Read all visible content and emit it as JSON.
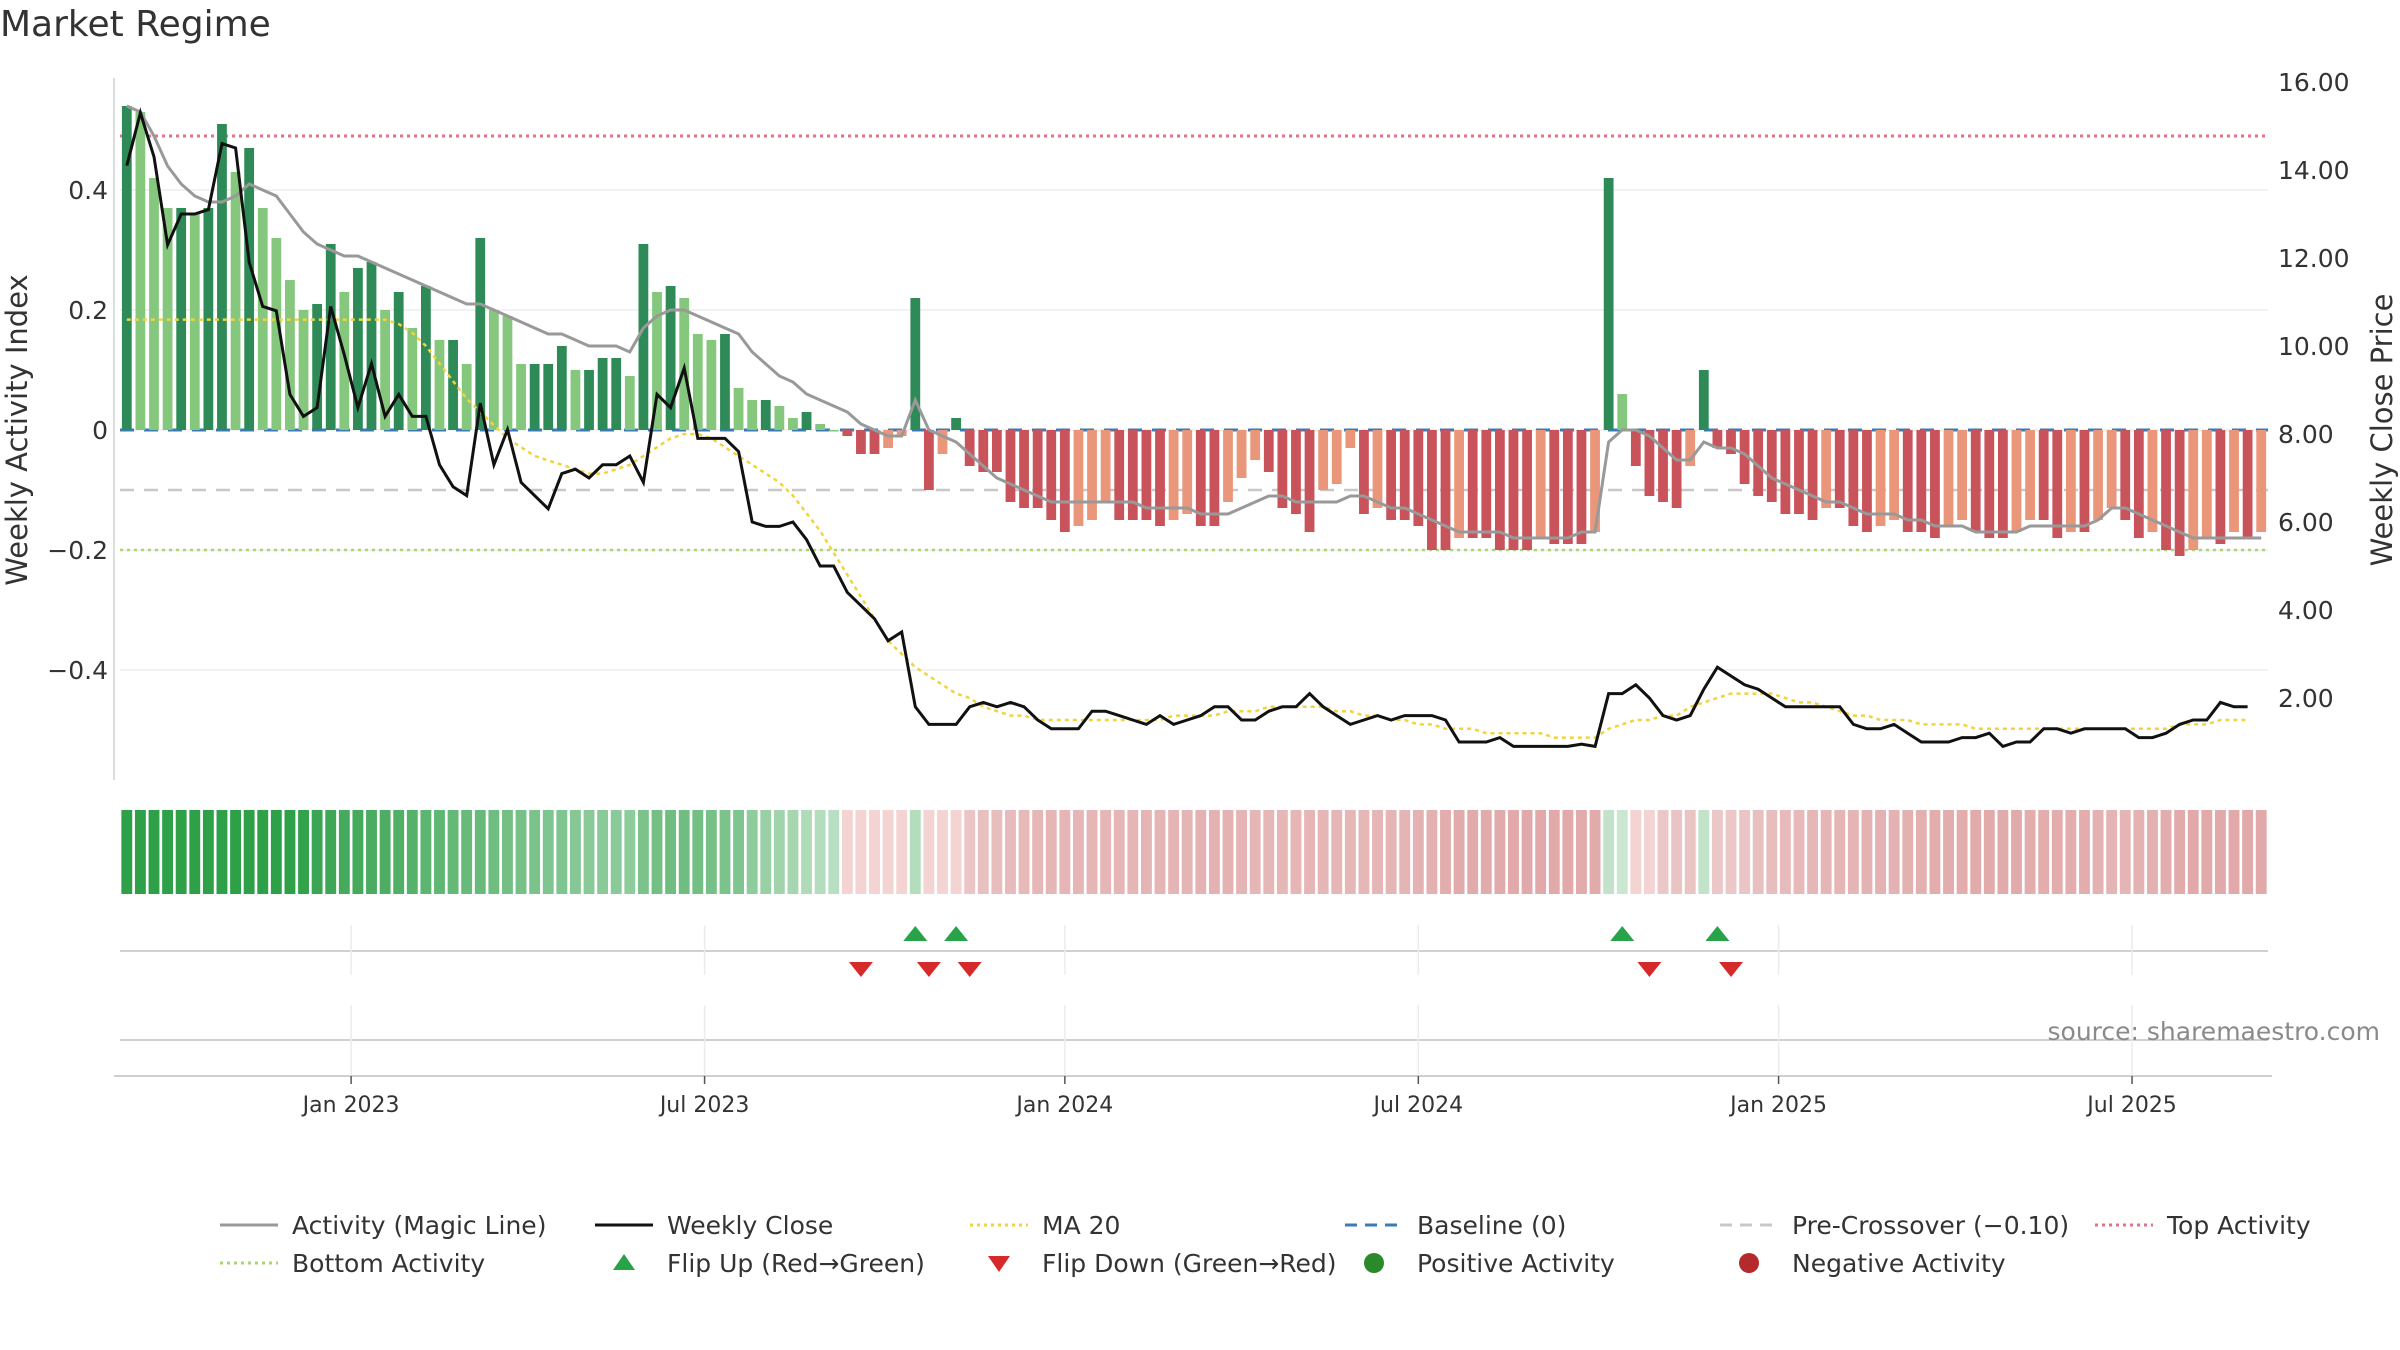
{
  "title": "Market Regime",
  "source": "source: sharemaestro.com",
  "chart_data": {
    "type": "bar",
    "left_axis": {
      "label": "Weekly Activity Index",
      "ticks": [
        0.4,
        0.2,
        0,
        -0.2,
        -0.4
      ],
      "tick_labels": [
        "0.4",
        "0.2",
        "0",
        "−0.2",
        "−0.4"
      ],
      "ylim": [
        -0.585,
        0.585
      ]
    },
    "right_axis": {
      "label": "Weekly Close Price",
      "ticks": [
        2,
        4,
        6,
        8,
        10,
        12,
        14,
        16
      ],
      "tick_labels": [
        "2.00",
        "4.00",
        "6.00",
        "8.00",
        "10.00",
        "12.00",
        "14.00",
        "16.00"
      ],
      "ylim": [
        -0.2,
        16.0
      ]
    },
    "x_tick_labels": [
      "Jan 2023",
      "Jul 2023",
      "Jan 2024",
      "Jul 2024",
      "Jan 2025",
      "Jul 2025"
    ],
    "x_tick_weeks": [
      17,
      43,
      69.5,
      95.5,
      122,
      148
    ],
    "grid": true,
    "legend_position": "bottom",
    "reference_lines": {
      "top_activity": 0.49,
      "bottom_activity": -0.2,
      "pre_crossover": -0.1,
      "baseline": 0
    },
    "activity_bars": [
      0.54,
      0.53,
      0.42,
      0.37,
      0.37,
      0.36,
      0.37,
      0.51,
      0.43,
      0.47,
      0.37,
      0.32,
      0.25,
      0.2,
      0.21,
      0.31,
      0.23,
      0.27,
      0.28,
      0.2,
      0.23,
      0.17,
      0.24,
      0.15,
      0.15,
      0.11,
      0.32,
      0.2,
      0.19,
      0.11,
      0.11,
      0.11,
      0.14,
      0.1,
      0.1,
      0.12,
      0.12,
      0.09,
      0.31,
      0.23,
      0.24,
      0.22,
      0.16,
      0.15,
      0.16,
      0.07,
      0.05,
      0.05,
      0.04,
      0.02,
      0.03,
      0.01,
      0.0,
      -0.01,
      -0.04,
      -0.04,
      -0.03,
      -0.01,
      0.22,
      -0.1,
      -0.04,
      0.02,
      -0.06,
      -0.07,
      -0.07,
      -0.12,
      -0.13,
      -0.13,
      -0.15,
      -0.17,
      -0.16,
      -0.15,
      -0.12,
      -0.15,
      -0.15,
      -0.15,
      -0.16,
      -0.15,
      -0.14,
      -0.16,
      -0.16,
      -0.12,
      -0.08,
      -0.05,
      -0.07,
      -0.13,
      -0.14,
      -0.17,
      -0.1,
      -0.09,
      -0.03,
      -0.14,
      -0.13,
      -0.15,
      -0.15,
      -0.16,
      -0.2,
      -0.2,
      -0.18,
      -0.18,
      -0.18,
      -0.2,
      -0.2,
      -0.2,
      -0.18,
      -0.19,
      -0.19,
      -0.19,
      -0.17,
      0.42,
      0.06,
      -0.06,
      -0.11,
      -0.12,
      -0.13,
      -0.06,
      0.1,
      -0.03,
      -0.04,
      -0.09,
      -0.11,
      -0.12,
      -0.14,
      -0.14,
      -0.15,
      -0.13,
      -0.13,
      -0.16,
      -0.17,
      -0.16,
      -0.15,
      -0.17,
      -0.17,
      -0.18,
      -0.16,
      -0.15,
      -0.17,
      -0.18,
      -0.18,
      -0.17,
      -0.15,
      -0.15,
      -0.18,
      -0.17,
      -0.17,
      -0.15,
      -0.13,
      -0.15,
      -0.18,
      -0.17,
      -0.2,
      -0.21,
      -0.2,
      -0.18,
      -0.19,
      -0.17,
      -0.18,
      -0.17
    ],
    "magic_line": [
      0.54,
      0.53,
      0.49,
      0.44,
      0.41,
      0.39,
      0.38,
      0.38,
      0.39,
      0.41,
      0.4,
      0.39,
      0.36,
      0.33,
      0.31,
      0.3,
      0.29,
      0.29,
      0.28,
      0.27,
      0.26,
      0.25,
      0.24,
      0.23,
      0.22,
      0.21,
      0.21,
      0.2,
      0.19,
      0.18,
      0.17,
      0.16,
      0.16,
      0.15,
      0.14,
      0.14,
      0.14,
      0.13,
      0.17,
      0.19,
      0.2,
      0.2,
      0.19,
      0.18,
      0.17,
      0.16,
      0.13,
      0.11,
      0.09,
      0.08,
      0.06,
      0.05,
      0.04,
      0.03,
      0.01,
      0.0,
      -0.01,
      -0.01,
      0.05,
      0.0,
      -0.01,
      -0.02,
      -0.04,
      -0.06,
      -0.08,
      -0.09,
      -0.1,
      -0.11,
      -0.12,
      -0.12,
      -0.12,
      -0.12,
      -0.12,
      -0.12,
      -0.12,
      -0.13,
      -0.13,
      -0.13,
      -0.13,
      -0.14,
      -0.14,
      -0.14,
      -0.13,
      -0.12,
      -0.11,
      -0.11,
      -0.12,
      -0.12,
      -0.12,
      -0.12,
      -0.11,
      -0.11,
      -0.12,
      -0.13,
      -0.13,
      -0.14,
      -0.15,
      -0.16,
      -0.17,
      -0.17,
      -0.17,
      -0.17,
      -0.18,
      -0.18,
      -0.18,
      -0.18,
      -0.18,
      -0.17,
      -0.17,
      -0.02,
      0.0,
      0.0,
      -0.01,
      -0.03,
      -0.05,
      -0.05,
      -0.02,
      -0.03,
      -0.03,
      -0.04,
      -0.06,
      -0.08,
      -0.09,
      -0.1,
      -0.11,
      -0.12,
      -0.12,
      -0.13,
      -0.14,
      -0.14,
      -0.14,
      -0.15,
      -0.15,
      -0.16,
      -0.16,
      -0.16,
      -0.17,
      -0.17,
      -0.17,
      -0.17,
      -0.16,
      -0.16,
      -0.16,
      -0.16,
      -0.16,
      -0.15,
      -0.13,
      -0.13,
      -0.14,
      -0.15,
      -0.16,
      -0.17,
      -0.18,
      -0.18,
      -0.18,
      -0.18,
      -0.18,
      -0.18
    ],
    "weekly_close": [
      14.1,
      15.3,
      14.3,
      12.3,
      13.0,
      13.0,
      13.1,
      14.6,
      14.5,
      11.9,
      10.9,
      10.8,
      8.9,
      8.4,
      8.6,
      10.9,
      9.8,
      8.6,
      9.6,
      8.4,
      8.9,
      8.4,
      8.4,
      7.3,
      6.8,
      6.6,
      8.7,
      7.3,
      8.1,
      6.9,
      6.6,
      6.3,
      7.1,
      7.2,
      7.0,
      7.3,
      7.3,
      7.5,
      6.9,
      8.9,
      8.6,
      9.5,
      7.9,
      7.9,
      7.9,
      7.6,
      6.0,
      5.9,
      5.9,
      6.0,
      5.6,
      5.0,
      5.0,
      4.4,
      4.1,
      3.8,
      3.3,
      3.5,
      1.8,
      1.4,
      1.4,
      1.4,
      1.8,
      1.9,
      1.8,
      1.9,
      1.8,
      1.5,
      1.3,
      1.3,
      1.3,
      1.7,
      1.7,
      1.6,
      1.5,
      1.4,
      1.6,
      1.4,
      1.5,
      1.6,
      1.8,
      1.8,
      1.5,
      1.5,
      1.7,
      1.8,
      1.8,
      2.1,
      1.8,
      1.6,
      1.4,
      1.5,
      1.6,
      1.5,
      1.6,
      1.6,
      1.6,
      1.5,
      1.0,
      1.0,
      1.0,
      1.1,
      0.9,
      0.9,
      0.9,
      0.9,
      0.9,
      0.95,
      0.9,
      2.1,
      2.1,
      2.3,
      2.0,
      1.6,
      1.5,
      1.6,
      2.2,
      2.7,
      2.5,
      2.3,
      2.2,
      2.0,
      1.8,
      1.8,
      1.8,
      1.8,
      1.8,
      1.4,
      1.3,
      1.3,
      1.4,
      1.2,
      1.0,
      1.0,
      1.0,
      1.1,
      1.1,
      1.2,
      0.9,
      1.0,
      1.0,
      1.3,
      1.3,
      1.2,
      1.3,
      1.3,
      1.3,
      1.3,
      1.1,
      1.1,
      1.2,
      1.4,
      1.5,
      1.5,
      1.9,
      1.8,
      1.8
    ],
    "ma20": [
      10.6,
      10.6,
      10.6,
      10.6,
      10.6,
      10.6,
      10.6,
      10.6,
      10.6,
      10.6,
      10.6,
      10.6,
      10.6,
      10.6,
      10.6,
      10.6,
      10.6,
      10.6,
      10.6,
      10.6,
      10.5,
      10.3,
      10.0,
      9.6,
      9.2,
      8.8,
      8.5,
      8.2,
      7.9,
      7.7,
      7.5,
      7.4,
      7.3,
      7.2,
      7.1,
      7.1,
      7.2,
      7.3,
      7.5,
      7.7,
      7.9,
      8.0,
      8.0,
      7.9,
      7.7,
      7.5,
      7.3,
      7.1,
      6.9,
      6.6,
      6.2,
      5.8,
      5.3,
      4.8,
      4.3,
      3.8,
      3.3,
      3.0,
      2.7,
      2.5,
      2.3,
      2.1,
      2.0,
      1.8,
      1.7,
      1.6,
      1.6,
      1.5,
      1.5,
      1.5,
      1.5,
      1.5,
      1.5,
      1.5,
      1.5,
      1.5,
      1.5,
      1.6,
      1.6,
      1.6,
      1.6,
      1.7,
      1.7,
      1.7,
      1.8,
      1.8,
      1.8,
      1.8,
      1.8,
      1.7,
      1.7,
      1.6,
      1.6,
      1.5,
      1.5,
      1.4,
      1.4,
      1.3,
      1.3,
      1.3,
      1.2,
      1.2,
      1.2,
      1.2,
      1.2,
      1.1,
      1.1,
      1.1,
      1.1,
      1.3,
      1.4,
      1.5,
      1.5,
      1.6,
      1.6,
      1.8,
      1.9,
      2.0,
      2.1,
      2.1,
      2.1,
      2.1,
      2.0,
      1.9,
      1.9,
      1.8,
      1.7,
      1.6,
      1.6,
      1.5,
      1.5,
      1.5,
      1.4,
      1.4,
      1.4,
      1.4,
      1.3,
      1.3,
      1.3,
      1.3,
      1.3,
      1.3,
      1.3,
      1.3,
      1.3,
      1.3,
      1.3,
      1.3,
      1.3,
      1.3,
      1.3,
      1.4,
      1.4,
      1.4,
      1.5,
      1.5,
      1.5
    ],
    "flip_up_weeks": [
      58,
      61,
      110,
      117
    ],
    "flip_down_weeks": [
      54,
      59,
      62,
      112,
      118
    ]
  },
  "legend": [
    {
      "label": "Activity (Magic Line)",
      "type": "line",
      "color": "#999999",
      "dash": ""
    },
    {
      "label": "Weekly Close",
      "type": "line",
      "color": "#111111",
      "dash": ""
    },
    {
      "label": "MA 20",
      "type": "line",
      "color": "#f2d33c",
      "dash": "3,4"
    },
    {
      "label": "Baseline (0)",
      "type": "line",
      "color": "#3b7bb5",
      "dash": "12,8"
    },
    {
      "label": "Pre-Crossover (−0.10)",
      "type": "line",
      "color": "#c8c8c8",
      "dash": "12,8"
    },
    {
      "label": "Top Activity",
      "type": "line",
      "color": "#e4708a",
      "dash": "3,4"
    },
    {
      "label": "Bottom Activity",
      "type": "line",
      "color": "#a9d672",
      "dash": "3,4"
    },
    {
      "label": "Flip Up (Red→Green)",
      "type": "up",
      "color": "#28a34a",
      "dash": ""
    },
    {
      "label": "Flip Down (Green→Red)",
      "type": "down",
      "color": "#d62a2a",
      "dash": ""
    },
    {
      "label": "Positive Activity",
      "type": "dot",
      "color": "#2a8a2a",
      "dash": ""
    },
    {
      "label": "Negative Activity",
      "type": "dot",
      "color": "#b52a2a",
      "dash": ""
    }
  ]
}
